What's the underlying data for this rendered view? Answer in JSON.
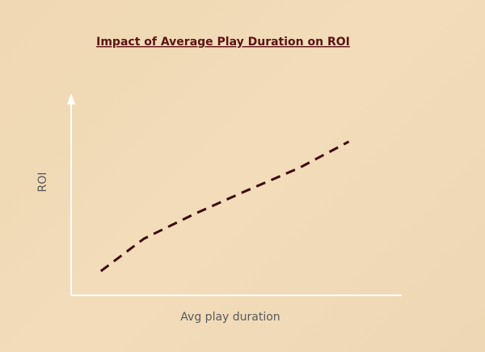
{
  "chart_data": {
    "type": "line",
    "title": "Impact of Average Play Duration on ROI",
    "x_label": "Avg play duration",
    "y_label": "ROI",
    "x": [
      9,
      22,
      37,
      52,
      69,
      84
    ],
    "series": [
      {
        "color": "#3d0c0c",
        "values": [
          12,
          28,
          40,
          51,
          63,
          76
        ]
      }
    ],
    "xlim": [
      0,
      100
    ],
    "ylim": [
      0,
      100
    ],
    "grid": false,
    "line_style": "dashed",
    "axis_color": "#ffffff"
  }
}
